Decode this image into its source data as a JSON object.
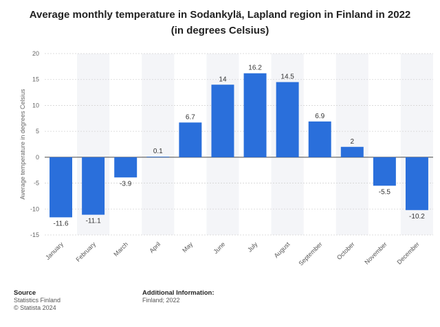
{
  "chart_data": {
    "type": "bar",
    "title": "Average monthly temperature in Sodankylä, Lapland region in Finland in 2022 (in degrees Celsius)",
    "xlabel": "",
    "ylabel": "Average temperature in degrees Celsius",
    "categories": [
      "January",
      "February",
      "March",
      "April",
      "May",
      "June",
      "July",
      "August",
      "September",
      "October",
      "November",
      "December"
    ],
    "values": [
      -11.6,
      -11.1,
      -3.9,
      0.1,
      6.7,
      14,
      16.2,
      14.5,
      6.9,
      2,
      -5.5,
      -10.2
    ],
    "value_labels": [
      "-11.6",
      "-11.1",
      "-3.9",
      "0.1",
      "6.7",
      "14",
      "16.2",
      "14.5",
      "6.9",
      "2",
      "-5.5",
      "-10.2"
    ],
    "ylim": [
      -15,
      20
    ],
    "yticks": [
      20,
      15,
      10,
      5,
      0,
      -5,
      -10,
      -15
    ],
    "grid": true,
    "legend": "none",
    "bar_color": "#2a6fdb",
    "band_color": "#f4f5f8"
  },
  "footer": {
    "source_heading": "Source",
    "source_lines": [
      "Statistics Finland",
      "© Statista 2024"
    ],
    "info_heading": "Additional Information:",
    "info_lines": [
      "Finland; 2022"
    ]
  }
}
